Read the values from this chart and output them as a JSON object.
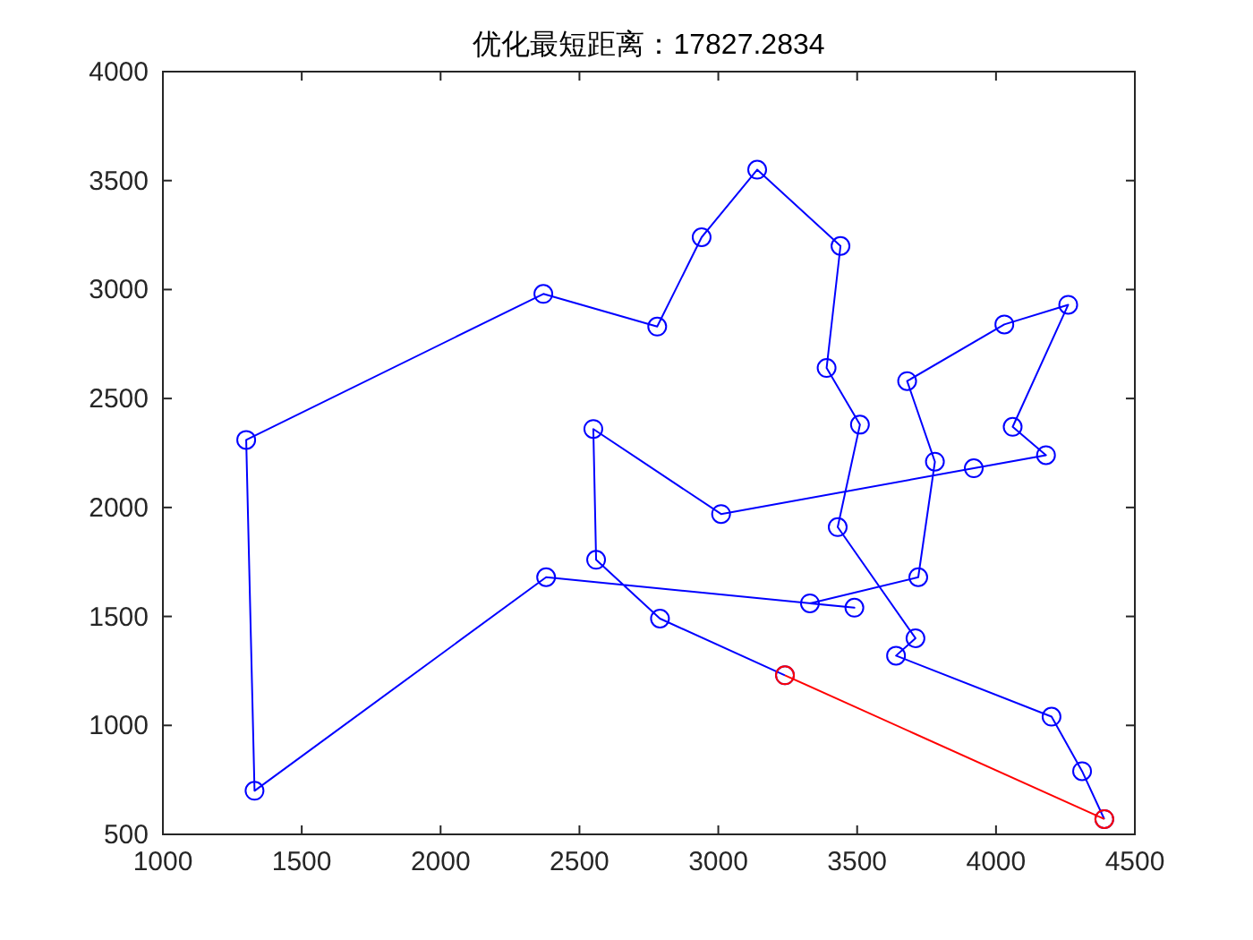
{
  "chart_data": {
    "type": "line",
    "title": "优化最短距离：17827.2834",
    "xlim": [
      1000,
      4500
    ],
    "xticks": [
      1000,
      1500,
      2000,
      2500,
      3000,
      3500,
      4000,
      4500
    ],
    "ylim": [
      500,
      4000
    ],
    "yticks": [
      500,
      1000,
      1500,
      2000,
      2500,
      3000,
      3500,
      4000
    ],
    "marker": "circle",
    "line_style": "solid",
    "grid": false,
    "series": [
      {
        "color": "#0000ff",
        "x": [
          4390,
          4310,
          4200,
          3640,
          3710,
          3430,
          3510,
          3390,
          3440,
          3140,
          2940,
          2780,
          2370,
          1300,
          1330,
          2380,
          3490,
          3330,
          3720,
          3780,
          3680,
          4030,
          4260,
          4060,
          4180,
          3920,
          3010,
          2550,
          2560,
          2790,
          3240
        ],
        "values": [
          570,
          790,
          1040,
          1320,
          1400,
          1910,
          2380,
          2640,
          3200,
          3550,
          3240,
          2830,
          2980,
          2310,
          700,
          1680,
          1540,
          1560,
          1680,
          2210,
          2580,
          2840,
          2930,
          2370,
          2240,
          2180,
          1970,
          2360,
          1760,
          1490,
          1230
        ]
      },
      {
        "color": "#ff0000",
        "x": [
          3240,
          4390
        ],
        "values": [
          1230,
          570
        ]
      }
    ]
  }
}
